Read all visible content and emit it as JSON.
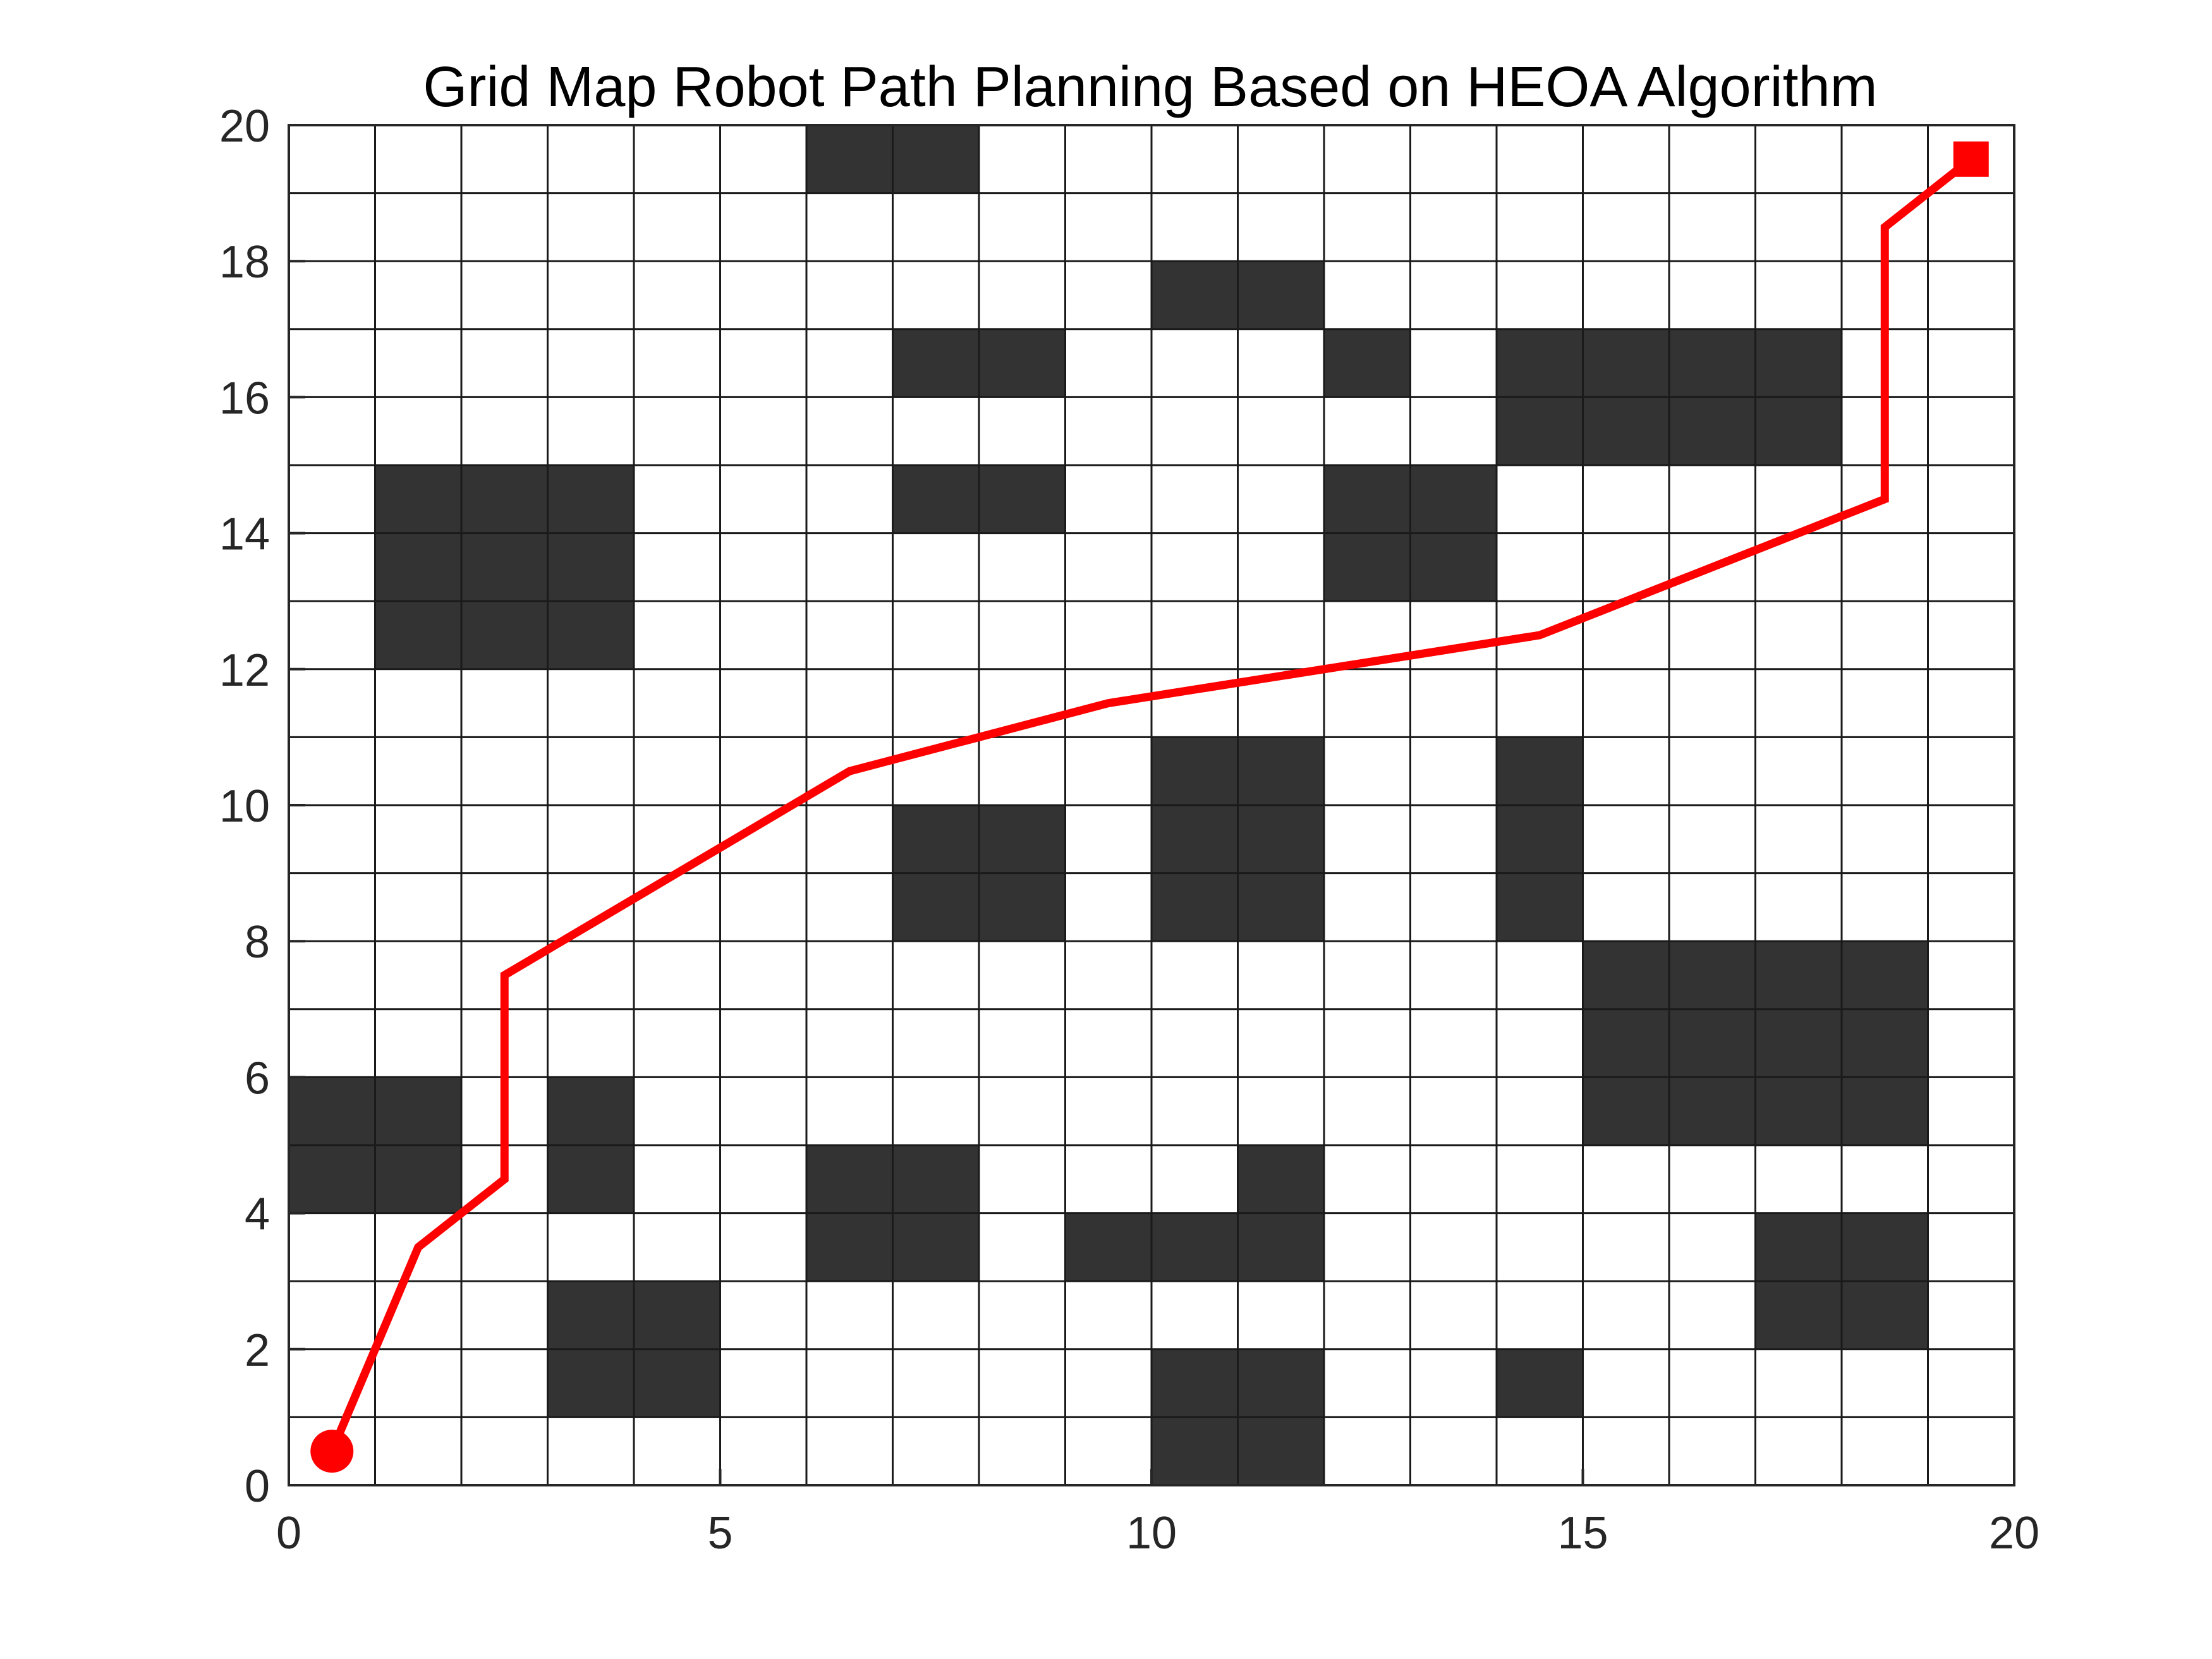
{
  "chart_data": {
    "type": "grid-map-path",
    "title": "Grid Map Robot Path Planning Based on HEOA Algorithm",
    "xlabel": "",
    "ylabel": "",
    "xlim": [
      0,
      20
    ],
    "ylim": [
      0,
      20
    ],
    "x_ticks": [
      0,
      5,
      10,
      15,
      20
    ],
    "y_ticks": [
      0,
      2,
      4,
      6,
      8,
      10,
      12,
      14,
      16,
      18,
      20
    ],
    "grid_lines": true,
    "grid_spacing": 1,
    "colors": {
      "obstacle": "#333333",
      "free": "#ffffff",
      "grid": "#1a1a1a",
      "path": "#ff0000",
      "start_marker": "#ff0000",
      "goal_marker": "#ff0000"
    },
    "obstacle_cells": [
      [
        10,
        0
      ],
      [
        11,
        0
      ],
      [
        3,
        1
      ],
      [
        4,
        1
      ],
      [
        10,
        1
      ],
      [
        11,
        1
      ],
      [
        14,
        1
      ],
      [
        3,
        2
      ],
      [
        4,
        2
      ],
      [
        17,
        2
      ],
      [
        18,
        2
      ],
      [
        6,
        3
      ],
      [
        7,
        3
      ],
      [
        9,
        3
      ],
      [
        10,
        3
      ],
      [
        11,
        3
      ],
      [
        17,
        3
      ],
      [
        18,
        3
      ],
      [
        0,
        4
      ],
      [
        1,
        4
      ],
      [
        3,
        4
      ],
      [
        6,
        4
      ],
      [
        7,
        4
      ],
      [
        11,
        4
      ],
      [
        0,
        5
      ],
      [
        1,
        5
      ],
      [
        3,
        5
      ],
      [
        15,
        5
      ],
      [
        16,
        5
      ],
      [
        17,
        5
      ],
      [
        18,
        5
      ],
      [
        15,
        6
      ],
      [
        16,
        6
      ],
      [
        17,
        6
      ],
      [
        18,
        6
      ],
      [
        15,
        7
      ],
      [
        16,
        7
      ],
      [
        17,
        7
      ],
      [
        18,
        7
      ],
      [
        7,
        8
      ],
      [
        8,
        8
      ],
      [
        10,
        8
      ],
      [
        11,
        8
      ],
      [
        14,
        8
      ],
      [
        7,
        9
      ],
      [
        8,
        9
      ],
      [
        10,
        9
      ],
      [
        11,
        9
      ],
      [
        14,
        9
      ],
      [
        10,
        10
      ],
      [
        11,
        10
      ],
      [
        14,
        10
      ],
      [
        1,
        12
      ],
      [
        2,
        12
      ],
      [
        3,
        12
      ],
      [
        1,
        13
      ],
      [
        2,
        13
      ],
      [
        3,
        13
      ],
      [
        12,
        13
      ],
      [
        13,
        13
      ],
      [
        1,
        14
      ],
      [
        2,
        14
      ],
      [
        3,
        14
      ],
      [
        7,
        14
      ],
      [
        8,
        14
      ],
      [
        12,
        14
      ],
      [
        13,
        14
      ],
      [
        14,
        15
      ],
      [
        15,
        15
      ],
      [
        16,
        15
      ],
      [
        17,
        15
      ],
      [
        7,
        16
      ],
      [
        8,
        16
      ],
      [
        12,
        16
      ],
      [
        14,
        16
      ],
      [
        15,
        16
      ],
      [
        16,
        16
      ],
      [
        17,
        16
      ],
      [
        10,
        17
      ],
      [
        11,
        17
      ],
      [
        6,
        19
      ],
      [
        7,
        19
      ]
    ],
    "path": {
      "x": [
        0.5,
        1.5,
        2.5,
        2.5,
        6.5,
        9.5,
        14.5,
        18.5,
        18.5,
        19.5
      ],
      "y": [
        0.5,
        3.5,
        4.5,
        7.5,
        10.5,
        11.5,
        12.5,
        14.5,
        18.5,
        19.5
      ]
    },
    "start": {
      "x": 0.5,
      "y": 0.5,
      "marker": "circle"
    },
    "goal": {
      "x": 19.5,
      "y": 19.5,
      "marker": "square"
    }
  }
}
